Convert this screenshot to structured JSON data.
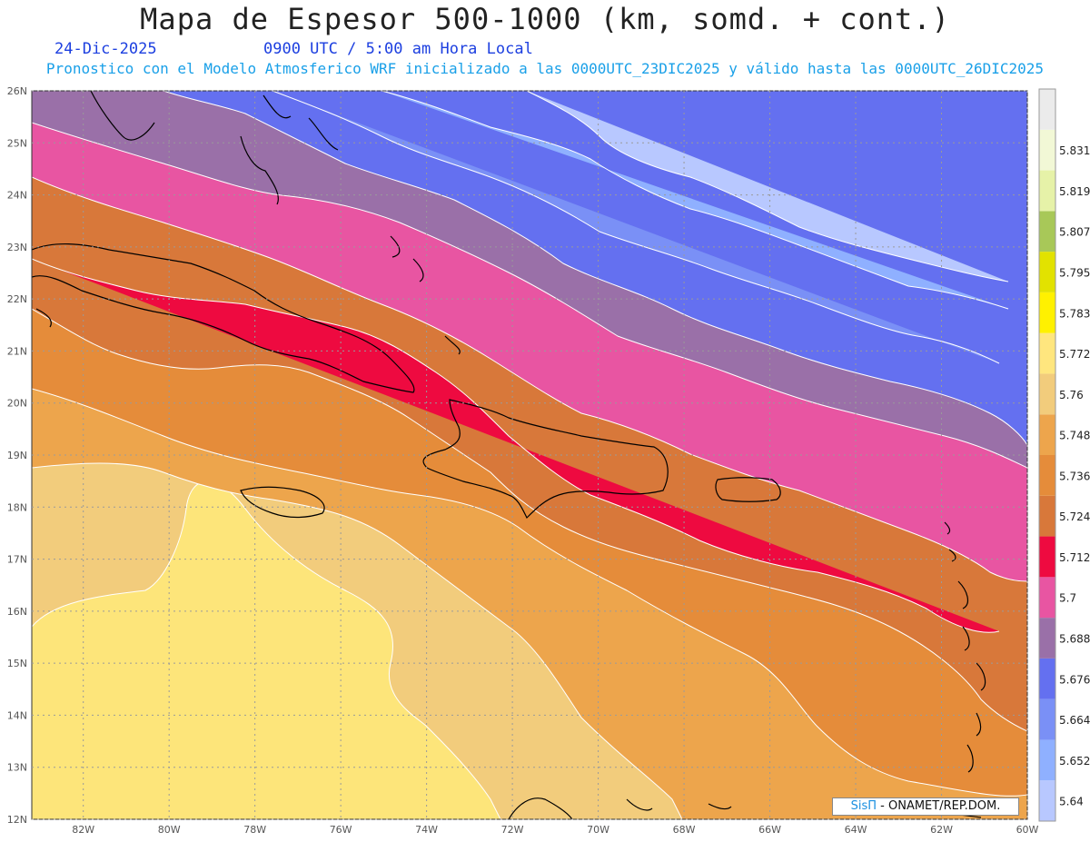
{
  "header": {
    "title": "Mapa de Espesor 500-1000 (km, somd. + cont.)",
    "date": "24-Dic-2025",
    "time": "0900 UTC / 5:00 am Hora Local",
    "subtitle": "Pronostico con el Modelo Atmosferico WRF inicializado a las 0000UTC_23DIC2025 y válido hasta las  0000UTC_26DIC2025"
  },
  "map": {
    "lat_labels": [
      "26N",
      "25N",
      "24N",
      "23N",
      "22N",
      "21N",
      "20N",
      "19N",
      "18N",
      "17N",
      "16N",
      "15N",
      "14N",
      "13N",
      "12N"
    ],
    "lon_labels": [
      "82W",
      "80W",
      "78W",
      "76W",
      "74W",
      "72W",
      "70W",
      "68W",
      "66W",
      "64W",
      "62W",
      "60W"
    ],
    "lat_range": [
      12,
      26
    ],
    "lon_range": [
      -83.2,
      -60
    ]
  },
  "colorbar": {
    "labels": [
      "5.64",
      "5.652",
      "5.664",
      "5.676",
      "5.688",
      "5.7",
      "5.712",
      "5.724",
      "5.736",
      "5.748",
      "5.76",
      "5.772",
      "5.783",
      "5.795",
      "5.807",
      "5.819",
      "5.831"
    ],
    "colors": [
      "#b8c8ff",
      "#8fb0ff",
      "#7a90f6",
      "#6470f0",
      "#9a70a8",
      "#e855a2",
      "#ee0a40",
      "#d8783a",
      "#e58c3a",
      "#eda54c",
      "#f2cc7c",
      "#ffe67e",
      "#fff100",
      "#e2e200",
      "#a8c858",
      "#e6f2a8",
      "#f2f8d6",
      "#ebebeb"
    ]
  },
  "credit": {
    "brand": "SisΠ",
    "text": "- ONAMET/REP.DOM."
  }
}
